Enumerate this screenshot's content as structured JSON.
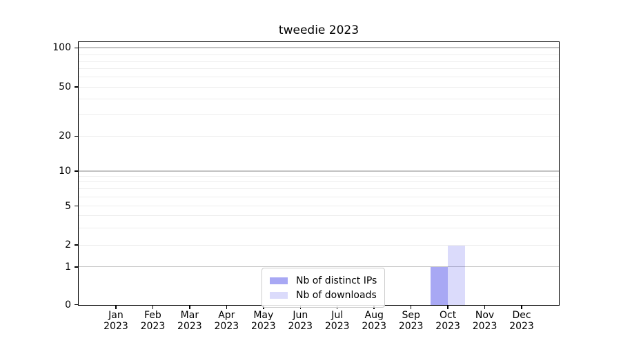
{
  "figure": {
    "background": "#ffffff"
  },
  "chart_data": {
    "type": "bar",
    "title": "tweedie 2023",
    "categories": [
      "Jan 2023",
      "Feb 2023",
      "Mar 2023",
      "Apr 2023",
      "May 2023",
      "Jun 2023",
      "Jul 2023",
      "Aug 2023",
      "Sep 2023",
      "Oct 2023",
      "Nov 2023",
      "Dec 2023"
    ],
    "series": [
      {
        "name": "Nb of distinct IPs",
        "color": "rgba(0,0,224,0.34)",
        "values": [
          0,
          0,
          0,
          0,
          0,
          0,
          0,
          0,
          0,
          1,
          0,
          0
        ]
      },
      {
        "name": "Nb of downloads",
        "color": "rgba(0,0,224,0.14)",
        "values": [
          0,
          0,
          0,
          0,
          0,
          0,
          0,
          0,
          0,
          2,
          0,
          0
        ]
      }
    ],
    "xlabel": "",
    "ylabel": "",
    "y_axis": {
      "scale": "symlog",
      "tick_labels": [
        "0",
        "1",
        "2",
        "5",
        "10",
        "20",
        "50",
        "100"
      ],
      "tick_positions": {
        "0": 0,
        "1": 0.1436,
        "2": 0.2272,
        "5": 0.376,
        "10": 0.5091,
        "20": 0.6423,
        "50": 0.8303,
        "100": 0.9791
      },
      "major_grid_positions": [
        0.1436,
        0.5091,
        0.9791
      ],
      "minor_grid_positions": [
        0.2272,
        0.2924,
        0.3394,
        0.376,
        0.4099,
        0.4413,
        0.4674,
        0.4883,
        0.6423,
        0.7258,
        0.7833,
        0.8303,
        0.8695,
        0.9008,
        0.9269,
        0.9517
      ]
    },
    "grid": true,
    "legend": {
      "position": "lower center",
      "entries": [
        "Nb of distinct IPs",
        "Nb of downloads"
      ]
    }
  },
  "colors": {
    "bar_distinct_ips": "rgba(0,0,224,0.34)",
    "bar_downloads": "rgba(0,0,224,0.14)",
    "grid_major": "#c2c2c2",
    "grid_minor": "#ededed",
    "spine": "#000000",
    "legend_border": "#cccccc",
    "background": "#ffffff"
  }
}
